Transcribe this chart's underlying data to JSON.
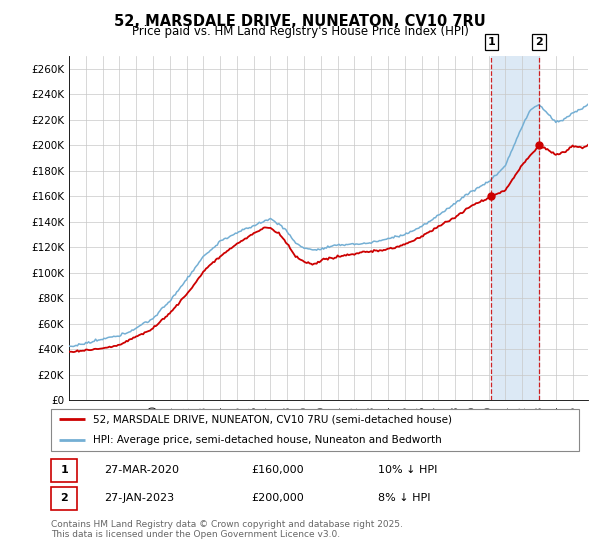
{
  "title": "52, MARSDALE DRIVE, NUNEATON, CV10 7RU",
  "subtitle": "Price paid vs. HM Land Registry's House Price Index (HPI)",
  "ylim": [
    0,
    270000
  ],
  "yticks": [
    0,
    20000,
    40000,
    60000,
    80000,
    100000,
    120000,
    140000,
    160000,
    180000,
    200000,
    220000,
    240000,
    260000
  ],
  "ytick_labels": [
    "£0",
    "£20K",
    "£40K",
    "£60K",
    "£80K",
    "£100K",
    "£120K",
    "£140K",
    "£160K",
    "£180K",
    "£200K",
    "£220K",
    "£240K",
    "£260K"
  ],
  "hpi_color": "#74afd4",
  "price_color": "#cc0000",
  "marker1_idx": 302,
  "marker2_idx": 336,
  "marker1_price": 160000,
  "marker2_price": 200000,
  "legend_line1": "52, MARSDALE DRIVE, NUNEATON, CV10 7RU (semi-detached house)",
  "legend_line2": "HPI: Average price, semi-detached house, Nuneaton and Bedworth",
  "annotation1_date": "27-MAR-2020",
  "annotation1_price": "£160,000",
  "annotation1_hpi": "10% ↓ HPI",
  "annotation2_date": "27-JAN-2023",
  "annotation2_price": "£200,000",
  "annotation2_hpi": "8% ↓ HPI",
  "footer": "Contains HM Land Registry data © Crown copyright and database right 2025.\nThis data is licensed under the Open Government Licence v3.0.",
  "background_color": "#ffffff",
  "grid_color": "#c8c8c8",
  "shade_color": "#dce9f5"
}
